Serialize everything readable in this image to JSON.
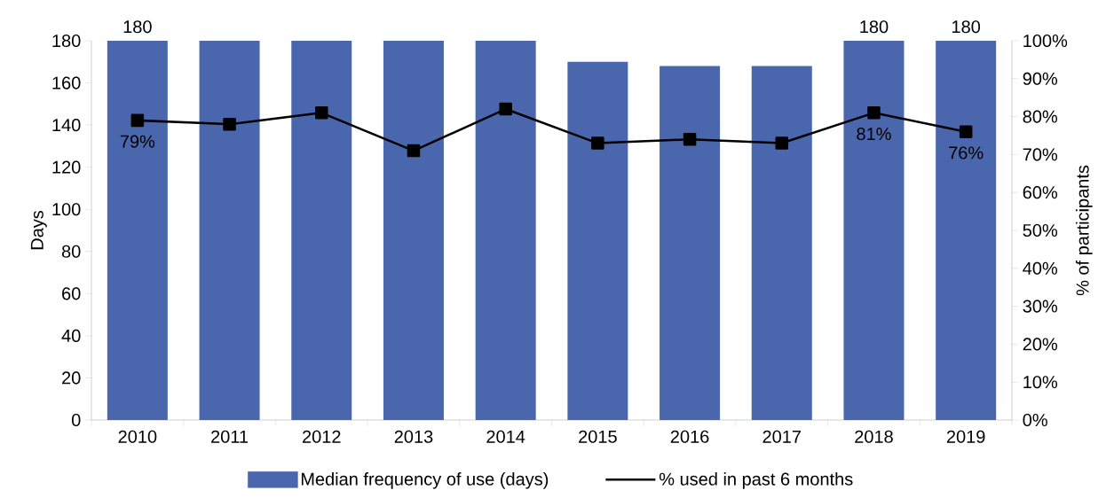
{
  "chart_data": {
    "type": "bar",
    "categories": [
      "2010",
      "2011",
      "2012",
      "2013",
      "2014",
      "2015",
      "2016",
      "2017",
      "2018",
      "2019"
    ],
    "ylabel": "Days",
    "y2label": "% of participants",
    "ylim": [
      0,
      180
    ],
    "yticks": [
      0,
      20,
      40,
      60,
      80,
      100,
      120,
      140,
      160,
      180
    ],
    "y2lim": [
      0,
      100
    ],
    "y2ticks": [
      {
        "value": 0,
        "label": "0%"
      },
      {
        "value": 10,
        "label": "10%"
      },
      {
        "value": 20,
        "label": "20%"
      },
      {
        "value": 30,
        "label": "30%"
      },
      {
        "value": 40,
        "label": "40%"
      },
      {
        "value": 50,
        "label": "50%"
      },
      {
        "value": 60,
        "label": "60%"
      },
      {
        "value": 70,
        "label": "70%"
      },
      {
        "value": 80,
        "label": "80%"
      },
      {
        "value": 90,
        "label": "90%"
      },
      {
        "value": 100,
        "label": "100%"
      }
    ],
    "legend": "bottom",
    "series": [
      {
        "name": "Median frequency of use (days)",
        "color": "#4a66ac",
        "values": [
          180,
          180,
          180,
          180,
          180,
          170,
          168,
          168,
          180,
          180
        ],
        "value_labels": [
          "180",
          null,
          null,
          null,
          null,
          null,
          null,
          null,
          "180",
          "180"
        ]
      },
      {
        "name": "% used in past 6 months",
        "type": "line",
        "axis": "y2",
        "color": "#000000",
        "marker": "square",
        "values": [
          79,
          78,
          81,
          71,
          82,
          73,
          74,
          73,
          81,
          76
        ],
        "value_labels": [
          "79%",
          null,
          null,
          null,
          null,
          null,
          null,
          null,
          "81%",
          "76%"
        ]
      }
    ]
  }
}
